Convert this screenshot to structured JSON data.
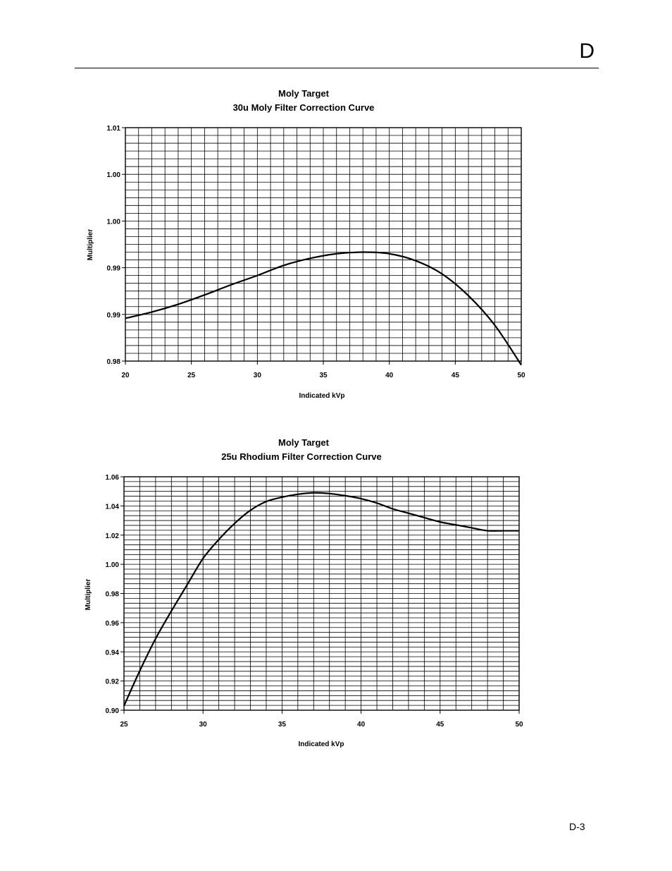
{
  "page": {
    "section_letter": "D",
    "page_number": "D-3"
  },
  "chart_data": [
    {
      "type": "line",
      "title": "Moly Target",
      "subtitle": "30u Moly Filter Correction Curve",
      "xlabel": "Indicated kVp",
      "ylabel": "Multiplier",
      "xlim": [
        20,
        50
      ],
      "ylim": [
        0.98,
        1.01
      ],
      "x_ticks": [
        "20",
        "25",
        "30",
        "35",
        "40",
        "45",
        "50"
      ],
      "y_ticks": [
        "0.98",
        "0.99",
        "0.99",
        "1.00",
        "1.00",
        "1.01"
      ],
      "grid": true,
      "series": [
        {
          "x": [
            20,
            22,
            24,
            26,
            28,
            30,
            32,
            34,
            36,
            38,
            40,
            42,
            44,
            46,
            48,
            50
          ],
          "values": [
            0.9855,
            0.9863,
            0.9873,
            0.9885,
            0.9898,
            0.991,
            0.9923,
            0.9932,
            0.9938,
            0.994,
            0.9938,
            0.9929,
            0.9912,
            0.9884,
            0.9846,
            0.9795
          ]
        }
      ]
    },
    {
      "type": "line",
      "title": "Moly Target",
      "subtitle": "25u Rhodium Filter Correction Curve",
      "xlabel": "Indicated kVp",
      "ylabel": "Multiplier",
      "xlim": [
        25,
        50
      ],
      "ylim": [
        0.9,
        1.06
      ],
      "x_ticks": [
        "25",
        "30",
        "35",
        "40",
        "45",
        "50"
      ],
      "y_ticks": [
        "0.90",
        "0.92",
        "0.94",
        "0.96",
        "0.98",
        "1.00",
        "1.02",
        "1.04",
        "1.06"
      ],
      "grid": true,
      "series": [
        {
          "x": [
            25,
            26,
            27,
            28,
            29,
            30,
            31,
            32,
            33,
            34,
            35,
            36,
            37,
            38,
            39,
            40,
            41,
            42,
            43,
            44,
            45,
            46,
            47,
            48,
            49,
            50
          ],
          "values": [
            0.903,
            0.927,
            0.949,
            0.968,
            0.986,
            1.004,
            1.017,
            1.028,
            1.037,
            1.043,
            1.046,
            1.048,
            1.049,
            1.0485,
            1.047,
            1.045,
            1.042,
            1.038,
            1.035,
            1.032,
            1.029,
            1.027,
            1.025,
            1.023,
            1.023,
            1.023
          ]
        }
      ]
    }
  ]
}
